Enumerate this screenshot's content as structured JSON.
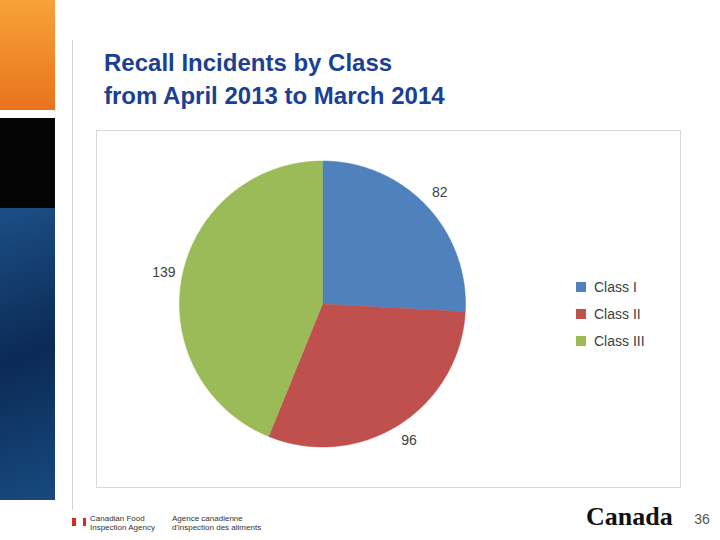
{
  "chart_data": {
    "type": "pie",
    "title": "Recall Incidents by Class",
    "subtitle": "from April 2013 to March 2014",
    "categories": [
      "Class I",
      "Class II",
      "Class III"
    ],
    "values": [
      82,
      96,
      139
    ],
    "colors": [
      "#4f81bd",
      "#c0504d",
      "#9bbb59"
    ],
    "data_labels": true,
    "legend": "right"
  },
  "footer": {
    "agency_en": [
      "Canadian Food",
      "Inspection Agency"
    ],
    "agency_fr": [
      "Agence canadienne",
      "d'inspection des aliments"
    ],
    "wordmark": "Canada",
    "page_number": 36
  }
}
